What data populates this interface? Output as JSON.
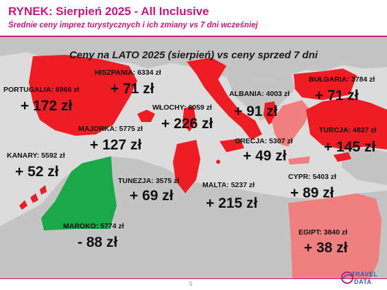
{
  "header": {
    "title": "RYNEK: Sierpień 2025 - All Inclusive",
    "subtitle": "Średnie ceny imprez turystycznych i ich zmiany vs 7 dni wcześniej"
  },
  "map": {
    "heading": "Ceny na LATO 2025 (sierpień) vs ceny sprzed 7 dni",
    "colors": {
      "increase": "#ee1c25",
      "increase_light": "#f08080",
      "decrease": "#1aa84a",
      "land": "#c4c4c4",
      "sea": "#dcdcdc"
    },
    "destinations": {
      "portugalia": {
        "label": "PORTUGALIA: 6966 zł",
        "change": "+ 172 zł"
      },
      "hiszpania": {
        "label": "HISZPANIA: 6334 zł",
        "change": "+ 71 zł"
      },
      "majorka": {
        "label": "MAJORKA: 5775 zł",
        "change": "+ 127 zł"
      },
      "kanary": {
        "label": "KANARY: 5592 zł",
        "change": "+ 52 zł"
      },
      "wlochy": {
        "label": "WŁOCHY: 6059 zł",
        "change": "+ 226 zł"
      },
      "albania": {
        "label": "ALBANIA: 4003 zł",
        "change": "+ 91 zł"
      },
      "bulgaria": {
        "label": "BUŁGARIA: 3784 zł",
        "change": "+ 71 zł"
      },
      "turcja": {
        "label": "TURCJA: 4837 zł",
        "change": "+ 145 zł"
      },
      "grecja": {
        "label": "GRECJA: 5307 zł",
        "change": "+ 49 zł"
      },
      "tunezja": {
        "label": "TUNEZJA: 3575 zł",
        "change": "+ 69 zł"
      },
      "malta": {
        "label": "MALTA: 5237 zł",
        "change": "+ 215 zł"
      },
      "cypr": {
        "label": "CYPR: 5403 zł",
        "change": "+ 89 zł"
      },
      "maroko": {
        "label": "MAROKO: 5774 zł",
        "change": "- 88 zł"
      },
      "egipt": {
        "label": "EGIPT: 3840 zł",
        "change": "+ 38 zł"
      }
    }
  },
  "footer": {
    "page_number": "5",
    "logo_line1": "TRAVEL",
    "logo_line2": "DATA"
  }
}
